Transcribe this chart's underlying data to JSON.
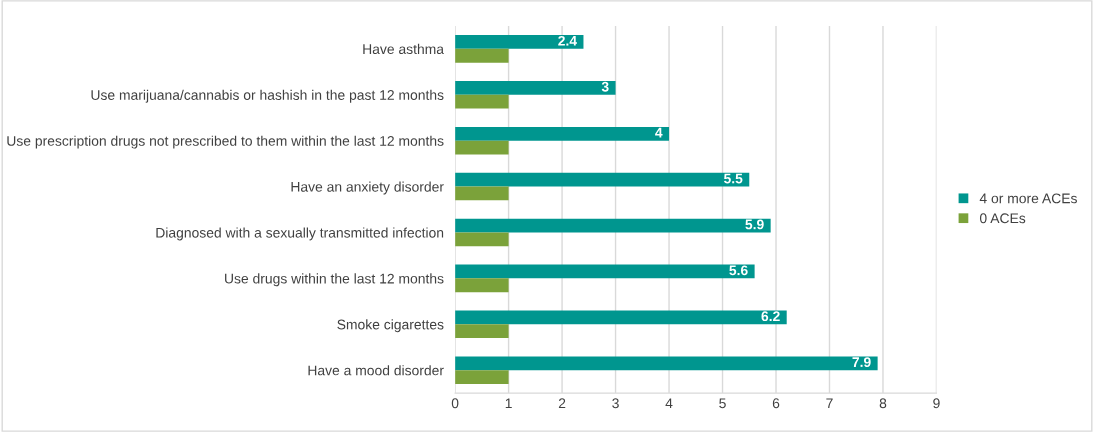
{
  "chart_data": {
    "type": "bar",
    "orientation": "horizontal",
    "categories": [
      "Have asthma",
      "Use marijuana/cannabis or hashish in the past 12 months",
      "Use prescription drugs not prescribed to them within the last 12 months",
      "Have an anxiety disorder",
      "Diagnosed with a sexually transmitted infection",
      "Use drugs within the last 12 months",
      "Smoke cigarettes",
      "Have a mood disorder"
    ],
    "series": [
      {
        "name": "4 or more ACEs",
        "color": "#00968f",
        "values": [
          2.4,
          3,
          4,
          5.5,
          5.9,
          5.6,
          6.2,
          7.9
        ],
        "value_labels": [
          "2.4",
          "3",
          "4",
          "5.5",
          "5.9",
          "5.6",
          "6.2",
          "7.9"
        ]
      },
      {
        "name": "0 ACEs",
        "color": "#7ba23a",
        "values": [
          1,
          1,
          1,
          1,
          1,
          1,
          1,
          1
        ]
      }
    ],
    "xlim": [
      0,
      9
    ],
    "xticks": [
      0,
      1,
      2,
      3,
      4,
      5,
      6,
      7,
      8,
      9
    ],
    "grid": "x",
    "legend": "right"
  }
}
